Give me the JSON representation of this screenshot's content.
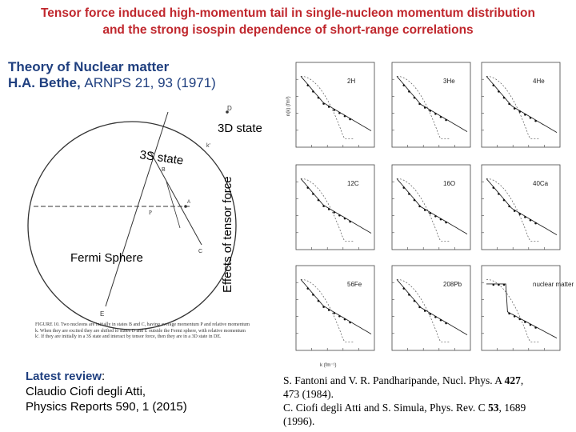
{
  "slide": {
    "title_line1": "Tensor force induced high-momentum tail in single-nucleon momentum distribution",
    "title_line2": "and the strong isospin dependence of short-range correlations"
  },
  "reference": {
    "line1": "Theory of Nuclear matter",
    "authors": "H.A. Bethe,",
    "journal": "ARNPS 21, 93 (1971)"
  },
  "diagram": {
    "d_state_label": "3D state",
    "s_state_label": "3S state",
    "fermi_label": "Fermi Sphere",
    "effects_label": "Effects of tensor force",
    "point_d": "D",
    "point_k": "k'",
    "point_e": "E",
    "point_b": "B",
    "point_c": "C",
    "point_a": "A",
    "caption": "FIGURE 10. Two nucleons are initially in states B and C, having average momentum P and relative momentum k. When they are excited they are shifted to states D and E outside the Fermi sphere, with relative momentum k'. If they are initially in a 3S state and interact by tensor force, then they are in a 3D state in DE."
  },
  "plots": {
    "panels": [
      {
        "nucleus": "2H"
      },
      {
        "nucleus": "3He"
      },
      {
        "nucleus": "4He"
      },
      {
        "nucleus": "12C"
      },
      {
        "nucleus": "16O"
      },
      {
        "nucleus": "40Ca"
      },
      {
        "nucleus": "56Fe"
      },
      {
        "nucleus": "208Pb"
      },
      {
        "nucleus": "nuclear matter"
      }
    ],
    "x_label": "k (fm⁻¹)",
    "y_label": "n(k) (fm³)"
  },
  "review": {
    "label": "Latest review",
    "colon": ":",
    "author": "Claudio Ciofi degli Atti,",
    "journal": "Physics Reports 590, 1 (2015)"
  },
  "citations": {
    "c1a": "S. Fantoni and V. R. Pandharipande, Nucl. Phys. A",
    "c1vol": "427",
    "c1b": ",",
    "c1c": "473 (1984).",
    "c2a": "C. Ciofi degli Atti and S. Simula, Phys. Rev. C",
    "c2vol": "53",
    "c2b": ", 1689",
    "c2c": "(1996)."
  },
  "colors": {
    "title": "#c0272d",
    "reference": "#1f3f7f"
  }
}
